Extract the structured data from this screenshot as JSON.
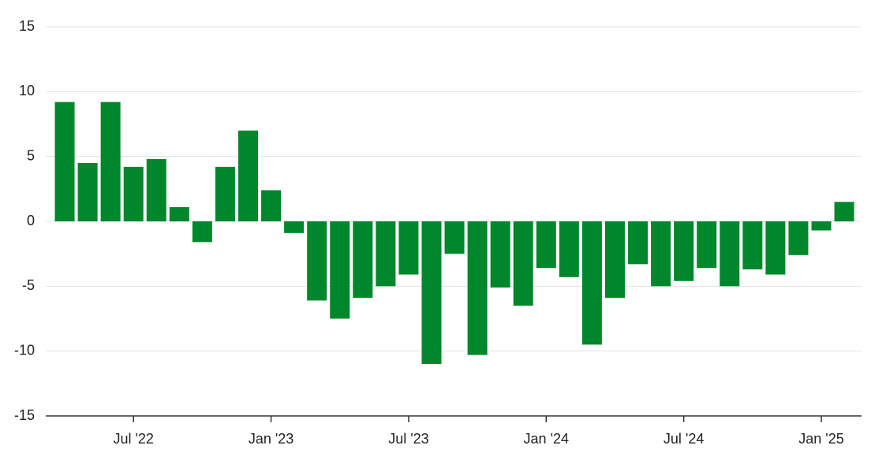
{
  "chart_data": {
    "type": "bar",
    "categories": [
      null,
      null,
      null,
      "Jul '22",
      null,
      null,
      null,
      null,
      null,
      "Jan '23",
      null,
      null,
      null,
      null,
      null,
      "Jul '23",
      null,
      null,
      null,
      null,
      null,
      "Jan '24",
      null,
      null,
      null,
      null,
      null,
      "Jul '24",
      null,
      null,
      null,
      null,
      null,
      "Jan '25",
      null
    ],
    "values": [
      9.2,
      4.5,
      9.2,
      4.2,
      4.8,
      1.1,
      -1.6,
      4.2,
      7.0,
      2.4,
      -0.9,
      -6.1,
      -7.5,
      -5.9,
      -5.0,
      -4.1,
      -11.0,
      -2.5,
      -10.3,
      -5.1,
      -6.5,
      -3.6,
      -4.3,
      -9.5,
      -5.9,
      -3.3,
      -5.0,
      -4.6,
      -3.6,
      -5.0,
      -3.7,
      -4.1,
      -2.6,
      -0.7,
      1.5
    ],
    "color": "#00862b",
    "ylim": [
      -15,
      15
    ],
    "yticks": [
      -15,
      -10,
      -5,
      0,
      5,
      10,
      15
    ],
    "grid": true
  }
}
